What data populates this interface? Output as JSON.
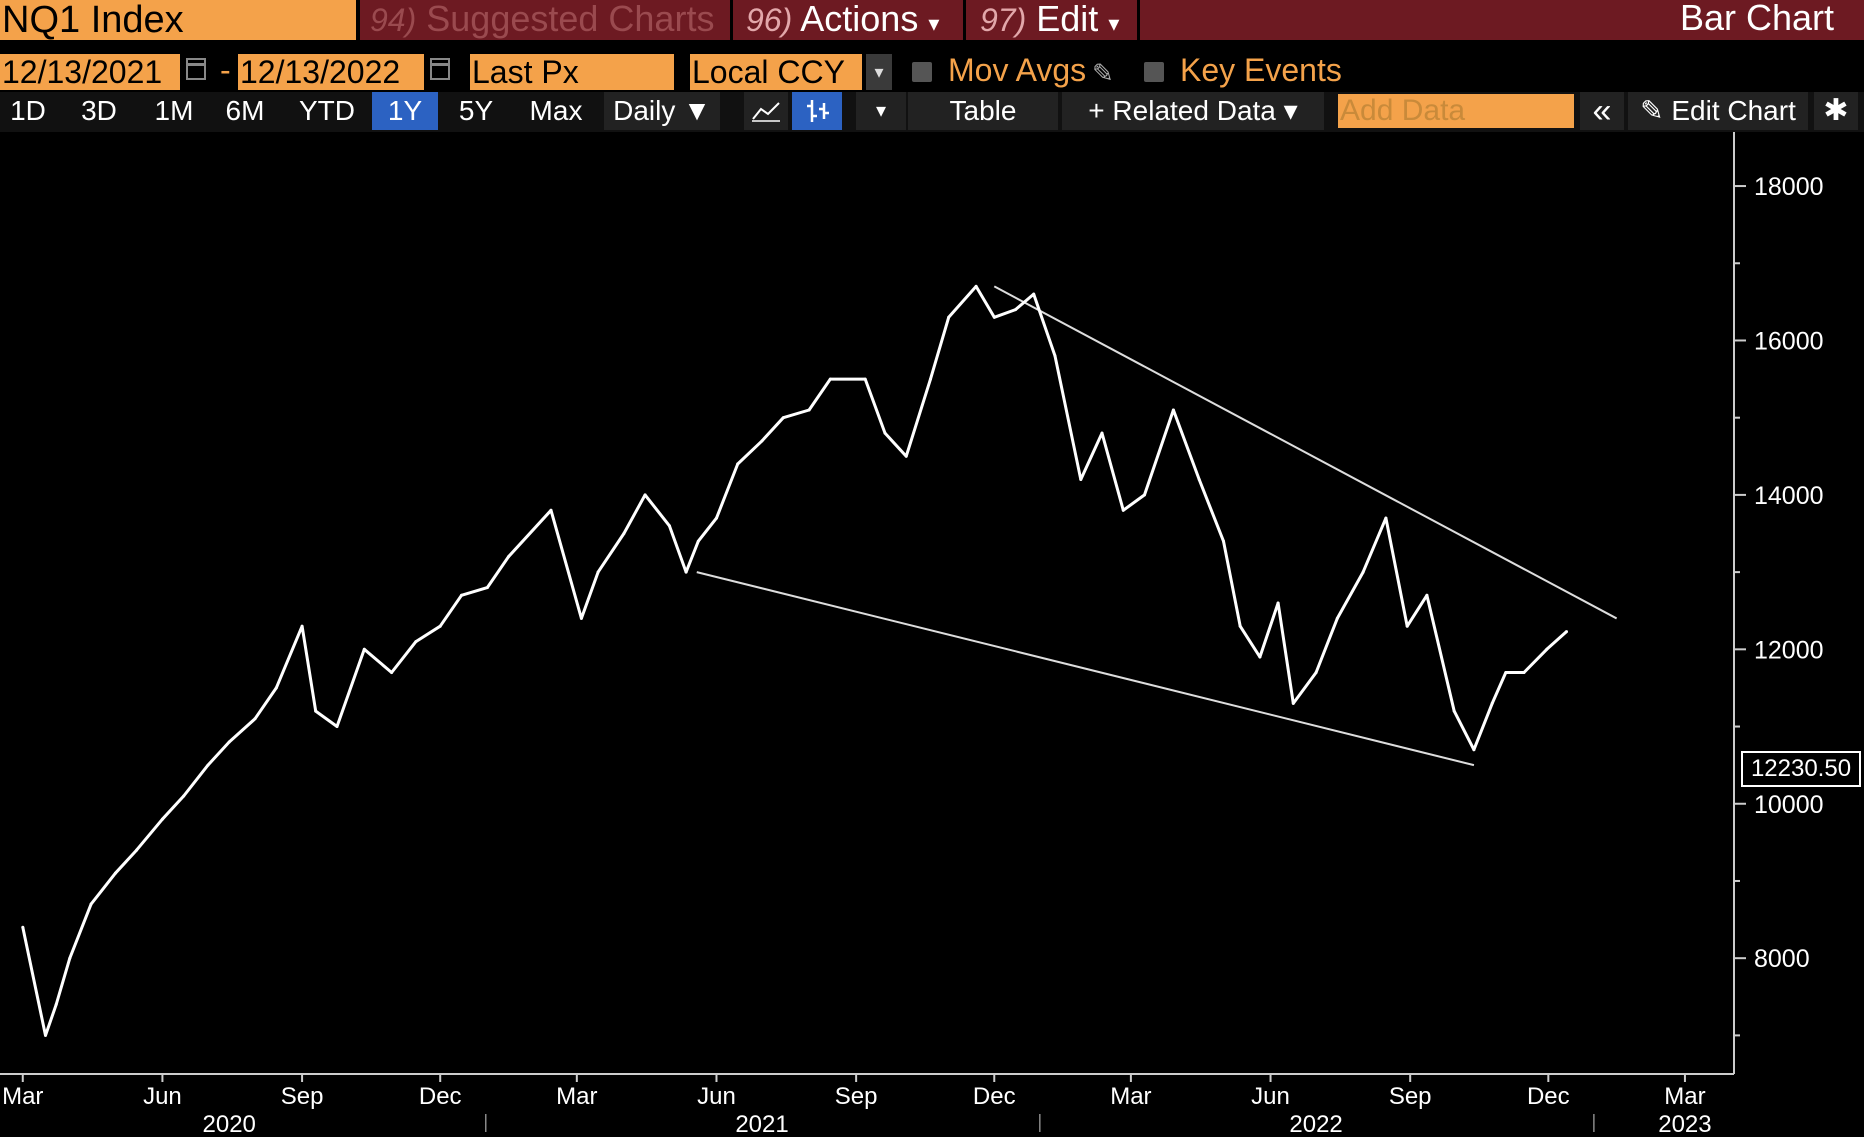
{
  "header": {
    "ticker": "NQ1 Index",
    "menu": [
      {
        "num": "94)",
        "label": "Suggested Charts",
        "dim": true
      },
      {
        "num": "96)",
        "label": "Actions",
        "caret": "▾"
      },
      {
        "num": "97)",
        "label": "Edit",
        "caret": "▾"
      }
    ],
    "title": "Bar Chart"
  },
  "controls": {
    "start_date": "12/13/2021",
    "end_date": "12/13/2022",
    "separator": "-",
    "field": "Last Px",
    "currency": "Local CCY",
    "dropdown_glyph": "▾",
    "mov_avgs": "Mov Avgs",
    "key_events": "Key Events"
  },
  "toolbar": {
    "periods": [
      "1D",
      "3D",
      "1M",
      "6M",
      "YTD",
      "1Y",
      "5Y",
      "Max"
    ],
    "active_period": "1Y",
    "frequency": "Daily ▼",
    "table": "Table",
    "related": "+ Related Data ▾",
    "add_data_placeholder": "Add Data",
    "collapse": "«",
    "edit_chart": "✎ Edit Chart",
    "settings": "✱",
    "more": "▾"
  },
  "chart_data": {
    "type": "line",
    "title": "",
    "xlabel": "",
    "ylabel": "",
    "ylim": [
      6500,
      18700
    ],
    "y_ticks": [
      8000,
      10000,
      12000,
      14000,
      16000,
      18000
    ],
    "x_month_ticks": [
      "Mar",
      "Jun",
      "Sep",
      "Dec",
      "Mar",
      "Jun",
      "Sep",
      "Dec",
      "Mar",
      "Jun",
      "Sep",
      "Dec",
      "Mar"
    ],
    "x_month_dates": [
      "2020-03-01",
      "2020-06-01",
      "2020-09-01",
      "2020-12-01",
      "2021-03-01",
      "2021-06-01",
      "2021-09-01",
      "2021-12-01",
      "2022-03-01",
      "2022-06-01",
      "2022-09-01",
      "2022-12-01",
      "2023-03-01"
    ],
    "x_year_labels": [
      "2020",
      "2021",
      "2022",
      "2023"
    ],
    "last_price_label": "12230.50",
    "series": [
      {
        "x": [
          "2020-03-01",
          "2020-03-16",
          "2020-03-23",
          "2020-04-01",
          "2020-04-15",
          "2020-05-01",
          "2020-05-15",
          "2020-06-01",
          "2020-06-15",
          "2020-07-01",
          "2020-07-15",
          "2020-08-01",
          "2020-08-15",
          "2020-09-01",
          "2020-09-10",
          "2020-09-24",
          "2020-10-12",
          "2020-10-30",
          "2020-11-15",
          "2020-12-01",
          "2020-12-15",
          "2021-01-01",
          "2021-01-15",
          "2021-02-12",
          "2021-03-04",
          "2021-03-15",
          "2021-04-01",
          "2021-04-15",
          "2021-05-01",
          "2021-05-12",
          "2021-05-20",
          "2021-06-01",
          "2021-06-15",
          "2021-07-01",
          "2021-07-15",
          "2021-08-01",
          "2021-08-15",
          "2021-09-07",
          "2021-09-20",
          "2021-10-04",
          "2021-10-20",
          "2021-11-01",
          "2021-11-19",
          "2021-12-01",
          "2021-12-15",
          "2021-12-27",
          "2022-01-10",
          "2022-01-27",
          "2022-02-10",
          "2022-02-24",
          "2022-03-10",
          "2022-03-29",
          "2022-04-15",
          "2022-05-01",
          "2022-05-12",
          "2022-05-25",
          "2022-06-06",
          "2022-06-16",
          "2022-07-01",
          "2022-07-15",
          "2022-08-01",
          "2022-08-16",
          "2022-08-30",
          "2022-09-12",
          "2022-09-30",
          "2022-10-13",
          "2022-10-25",
          "2022-11-03",
          "2022-11-15",
          "2022-11-30",
          "2022-12-13"
        ],
        "y": [
          8400,
          7000,
          7400,
          8000,
          8700,
          9100,
          9400,
          9800,
          10100,
          10500,
          10800,
          11100,
          11500,
          12300,
          11200,
          11000,
          12000,
          11700,
          12100,
          12300,
          12700,
          12800,
          13200,
          13800,
          12400,
          13000,
          13500,
          14000,
          13600,
          13000,
          13400,
          13700,
          14400,
          14700,
          15000,
          15100,
          15500,
          15500,
          14800,
          14500,
          15500,
          16300,
          16700,
          16300,
          16400,
          16600,
          15800,
          14200,
          14800,
          13800,
          14000,
          15100,
          14200,
          13400,
          12300,
          11900,
          12600,
          11300,
          11700,
          12400,
          13000,
          13700,
          12300,
          12700,
          11200,
          10700,
          11300,
          11700,
          11700,
          12000,
          12230
        ]
      }
    ],
    "trendlines": [
      {
        "x": [
          "2021-12-01",
          "2023-01-15"
        ],
        "y": [
          16700,
          12400
        ]
      },
      {
        "x": [
          "2021-05-19",
          "2022-10-13"
        ],
        "y": [
          13000,
          10500
        ]
      }
    ]
  }
}
